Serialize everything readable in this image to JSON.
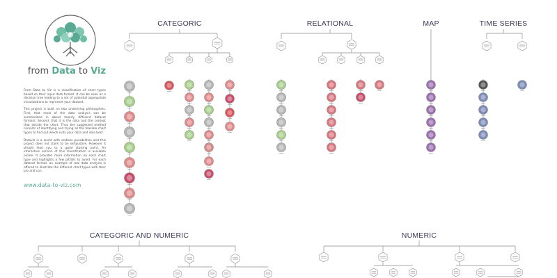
{
  "brand": {
    "prefix": "from ",
    "word1": "Data",
    "middle": " to ",
    "word2": "Viz"
  },
  "intro": {
    "paragraphs": [
      "From Data to Viz is a classification of chart types based on their input data format. It can be seen as a decision tree leading to a set of potential appropriate visualizations to represent your dataset.",
      "This project is built on two underlying philosophies. First, that most of the data analysis can be summarized in about twenty different dataset formats. Second, that it is the data and the context that decide the chart. Thus the suggested method consists of identifying and trying all the feasible chart types to find out which suits your data and idea best.",
      "Dataviz is a world with endless possibilities and this project does not claim to be exhaustive. However it should lead you to a good starting point. An interactive version of this classification is available online. It provides more information on each chart type and highlights a few pitfalls to avoid. For each dataset format, an example of real data analysis is offered to illustrate the different chart types with their pro and con."
    ],
    "website": "www.data-to-viz.com"
  },
  "sections": [
    {
      "id": "categoric",
      "title": "CATEGORIC"
    },
    {
      "id": "relational",
      "title": "RELATIONAL"
    },
    {
      "id": "map",
      "title": "MAP"
    },
    {
      "id": "time-series",
      "title": "TIME SERIES"
    },
    {
      "id": "categoric-and-numeric",
      "title": "CATEGORIC AND NUMERIC"
    },
    {
      "id": "numeric",
      "title": "NUMERIC"
    }
  ],
  "colors": {
    "accent": "#5aaa93",
    "categoric": [
      "#b7b7b7",
      "#a8d08d",
      "#e08a8a",
      "#b7b7b7",
      "#a8d08d",
      "#e08a8a",
      "#c94c6a",
      "#e08a8a"
    ],
    "relational": "#d9777f",
    "map": "#9b6fb0",
    "time_series": "#7c8bb8",
    "dark_node": "#555555"
  }
}
